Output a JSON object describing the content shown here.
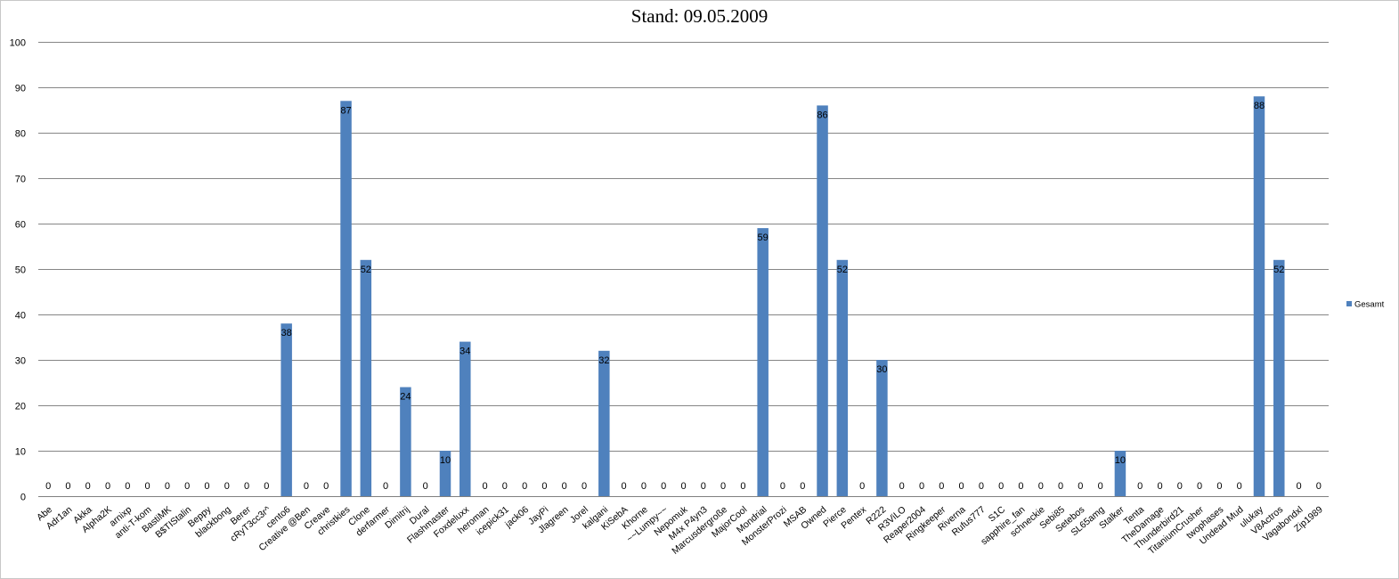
{
  "chart_data": {
    "type": "bar",
    "title": "Stand: 09.05.2009",
    "xlabel": "",
    "ylabel": "",
    "ylim": [
      0,
      100
    ],
    "yticks": [
      0,
      10,
      20,
      30,
      40,
      50,
      60,
      70,
      80,
      90,
      100
    ],
    "grid": true,
    "legend_position": "right",
    "bar_color": "#4f81bd",
    "categories": [
      "Abe",
      "Adr1an",
      "Akka",
      "Alpha2K",
      "arnixp",
      "anti-T-kom",
      "BastiMK",
      "B$TIStalin",
      "Beppy",
      "blackbong",
      "Berer",
      "cRyT3cc3r^",
      "cento6",
      "Creative @Ben",
      "Creave",
      "christkies",
      "Clone",
      "derfarmer",
      "Dimitrij",
      "Dural",
      "Flashmaster",
      "Foxdeluxx",
      "heroman",
      "icepick31",
      "jack06",
      "JayPi",
      "Jlagreen",
      "Jorel",
      "kalgani",
      "KiSebA",
      "Khorne",
      "~~Lumpy~~",
      "Nepomuk",
      "M4x P4yn3",
      "Marcusdergroße",
      "MajorCool",
      "Mondrial",
      "MonsterProzi",
      "MSAB",
      "Owned",
      "Pierce",
      "Pentex",
      "R222",
      "R3ViLO",
      "Reaper2004",
      "Ringkeeper",
      "Riverna",
      "Rufus777",
      "S1C",
      "sapphire_fan",
      "schneckie",
      "Sebi85",
      "Setebos",
      "SL65amg",
      "Stalker",
      "Tenta",
      "TheDamage",
      "Thunderbird21",
      "TitaniumCrusher",
      "twophases",
      "Undead Mud",
      "ulukay",
      "V8Actros",
      "Vagabondxl",
      "Zip1989"
    ],
    "series": [
      {
        "name": "Gesamt",
        "values": [
          0,
          0,
          0,
          0,
          0,
          0,
          0,
          0,
          0,
          0,
          0,
          0,
          38,
          0,
          0,
          87,
          52,
          0,
          24,
          0,
          10,
          34,
          0,
          0,
          0,
          0,
          0,
          0,
          32,
          0,
          0,
          0,
          0,
          0,
          0,
          0,
          59,
          0,
          0,
          86,
          52,
          0,
          30,
          0,
          0,
          0,
          0,
          0,
          0,
          0,
          0,
          0,
          0,
          0,
          10,
          0,
          0,
          0,
          0,
          0,
          0,
          88,
          52,
          0,
          0
        ]
      }
    ]
  }
}
